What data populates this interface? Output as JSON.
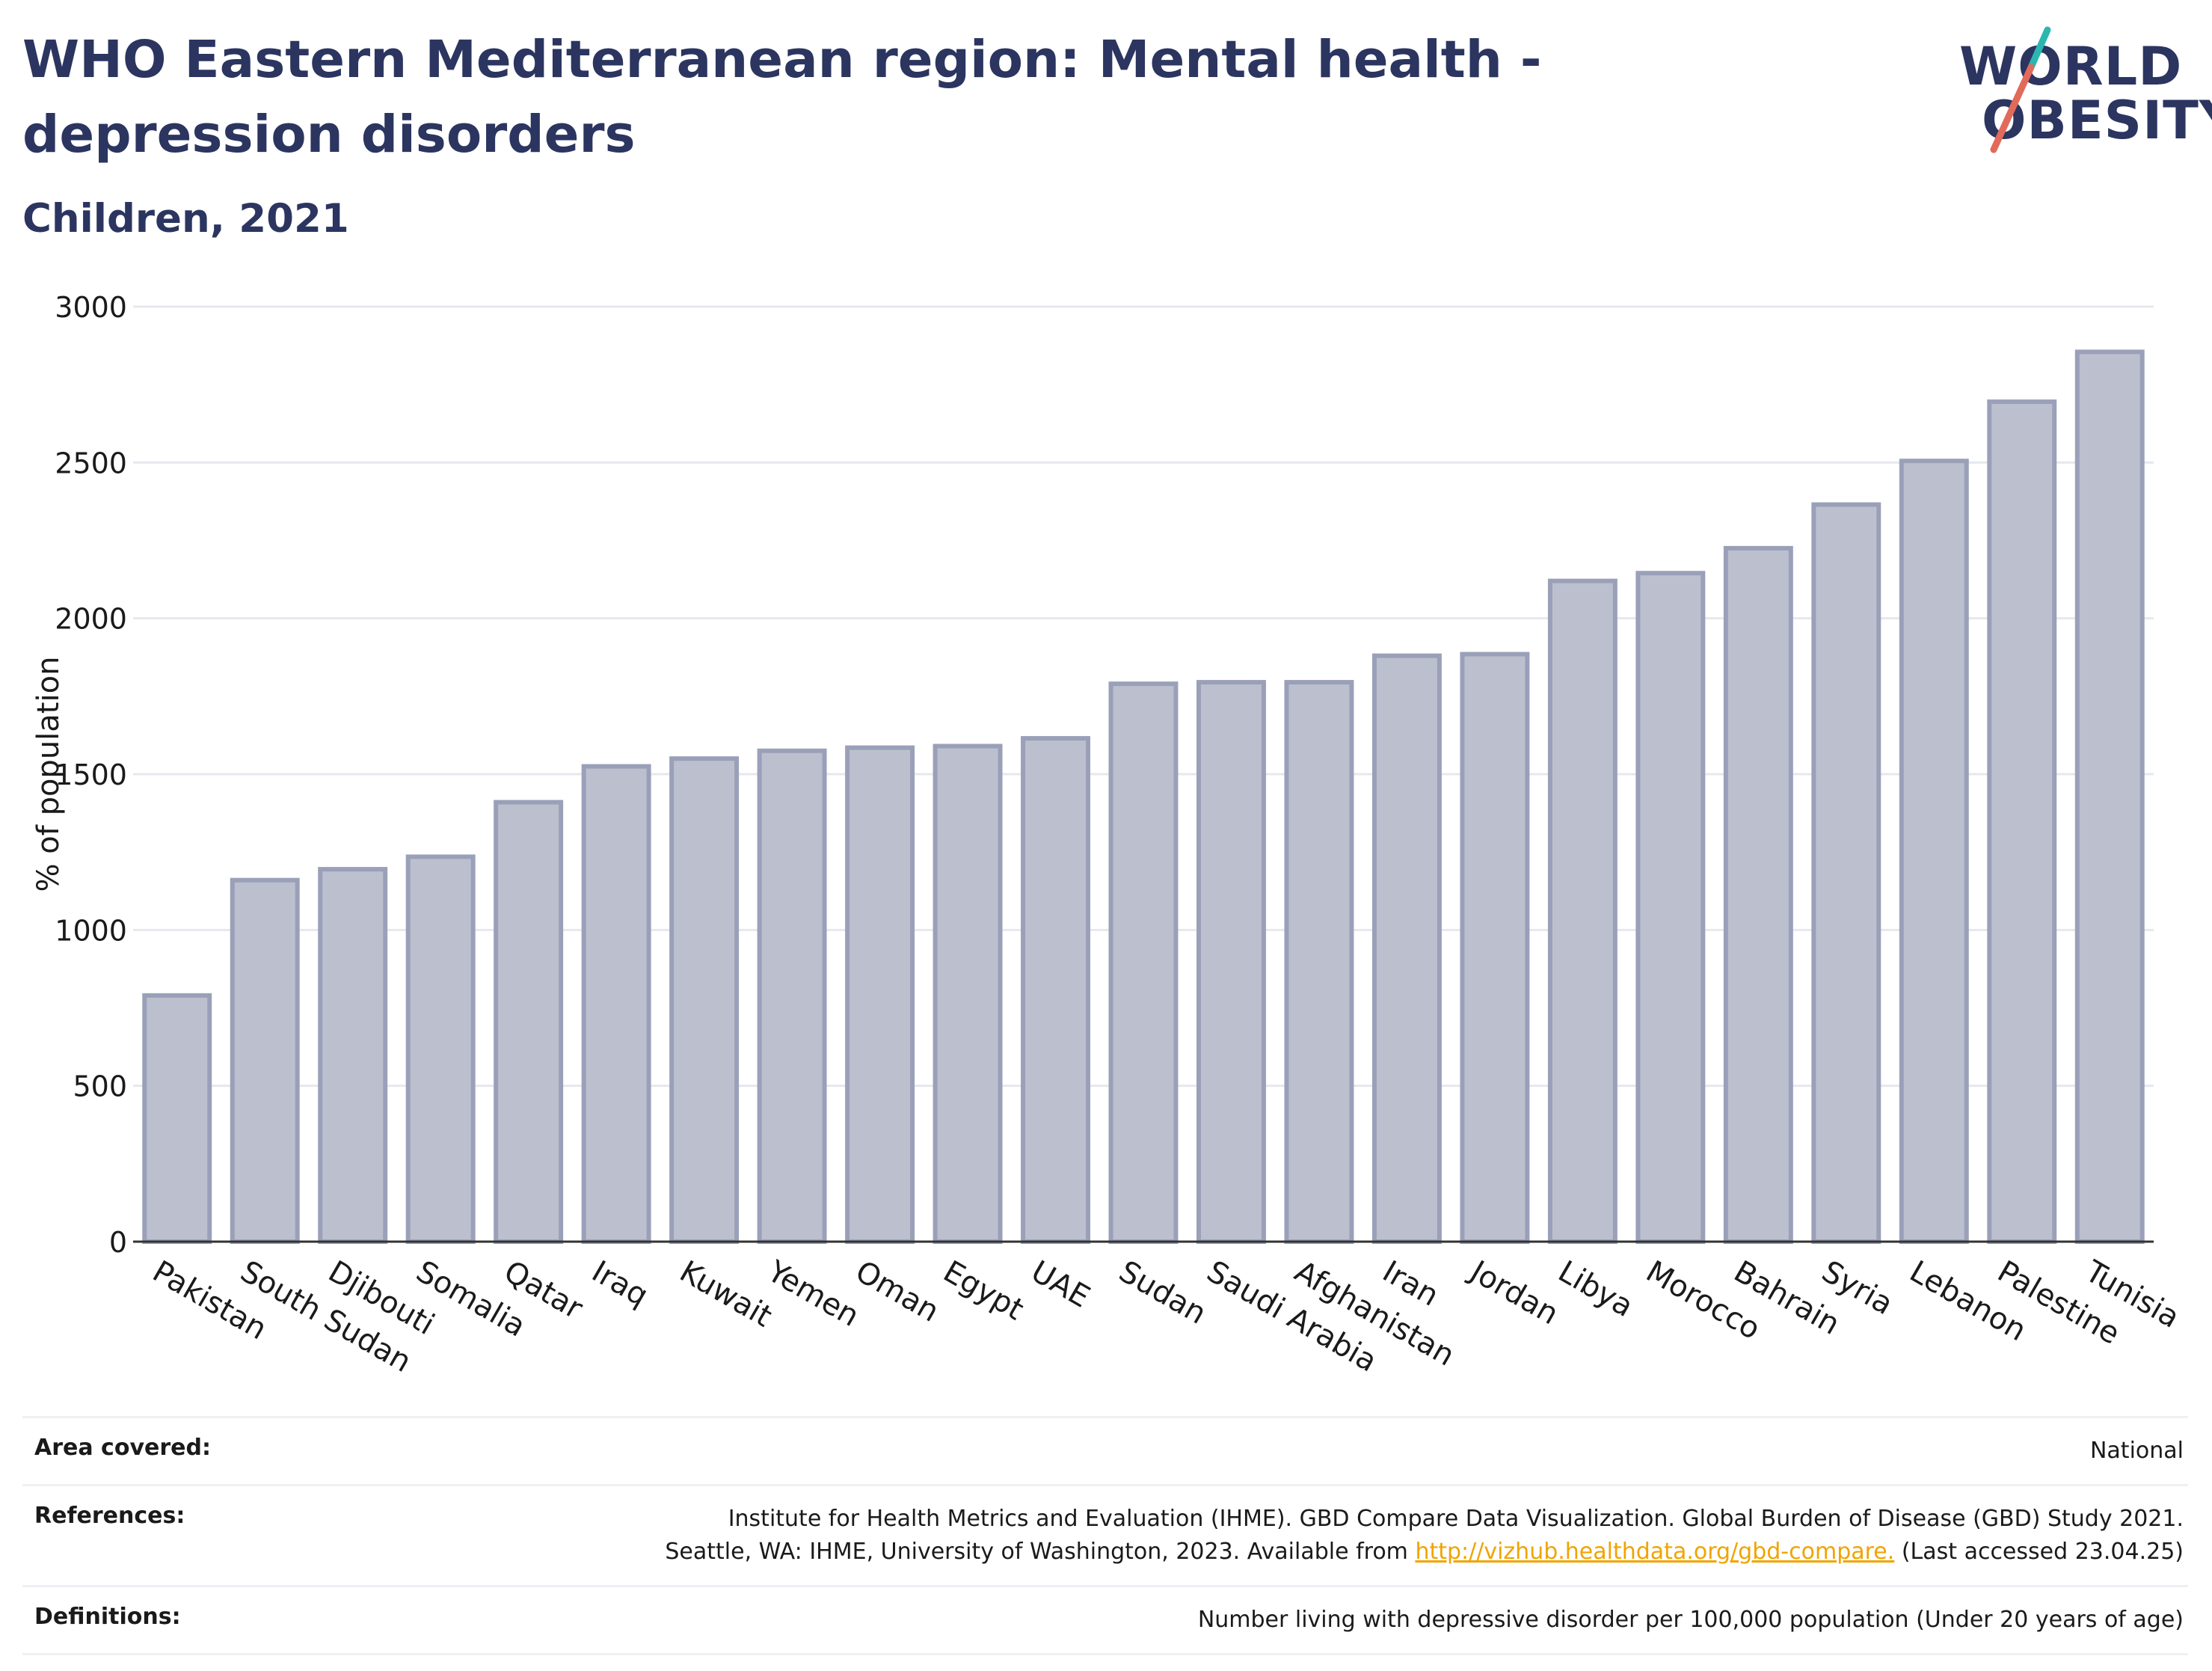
{
  "header": {
    "title": "WHO Eastern Mediterranean region: Mental health - depression disorders",
    "subtitle": "Children, 2021"
  },
  "logo": {
    "line1": "WORLD",
    "line2": "OBESITY",
    "icon": "world-obesity-logo",
    "accent_teal": "#2bb7b0",
    "accent_red": "#e26a5a"
  },
  "colors": {
    "bar_fill": "#bcc0ce",
    "bar_stroke": "#9aa0b8",
    "title": "#2b3560",
    "link": "#f0a400"
  },
  "chart_data": {
    "type": "bar",
    "ylabel": "% of population",
    "ylim": [
      0,
      3000
    ],
    "yticks": [
      "0",
      "500",
      "1000",
      "1500",
      "2000",
      "2500",
      "3000"
    ],
    "grid": true,
    "categories": [
      "Pakistan",
      "South Sudan",
      "Djibouti",
      "Somalia",
      "Qatar",
      "Iraq",
      "Kuwait",
      "Yemen",
      "Oman",
      "Egypt",
      "UAE",
      "Sudan",
      "Saudi Arabia",
      "Afghanistan",
      "Iran",
      "Jordan",
      "Libya",
      "Morocco",
      "Bahrain",
      "Syria",
      "Lebanon",
      "Palestine",
      "Tunisia"
    ],
    "values": [
      790,
      1160,
      1195,
      1235,
      1410,
      1525,
      1550,
      1575,
      1585,
      1590,
      1615,
      1790,
      1795,
      1795,
      1880,
      1885,
      2120,
      2145,
      2225,
      2365,
      2505,
      2695,
      2855
    ]
  },
  "footer": {
    "area_label": "Area covered:",
    "area_value": "National",
    "references_label": "References:",
    "references_line1": "Institute for Health Metrics and Evaluation (IHME). GBD Compare Data Visualization. Global Burden of Disease (GBD) Study 2021.",
    "references_line2_pre": "Seattle, WA: IHME, University of Washington, 2023. Available from ",
    "references_link": "http://vizhub.healthdata.org/gbd-compare.",
    "references_line2_post": " (Last accessed 23.04.25)",
    "definitions_label": "Definitions:",
    "definitions_value": "Number living with depressive disorder per 100,000 population (Under 20 years of age)"
  }
}
